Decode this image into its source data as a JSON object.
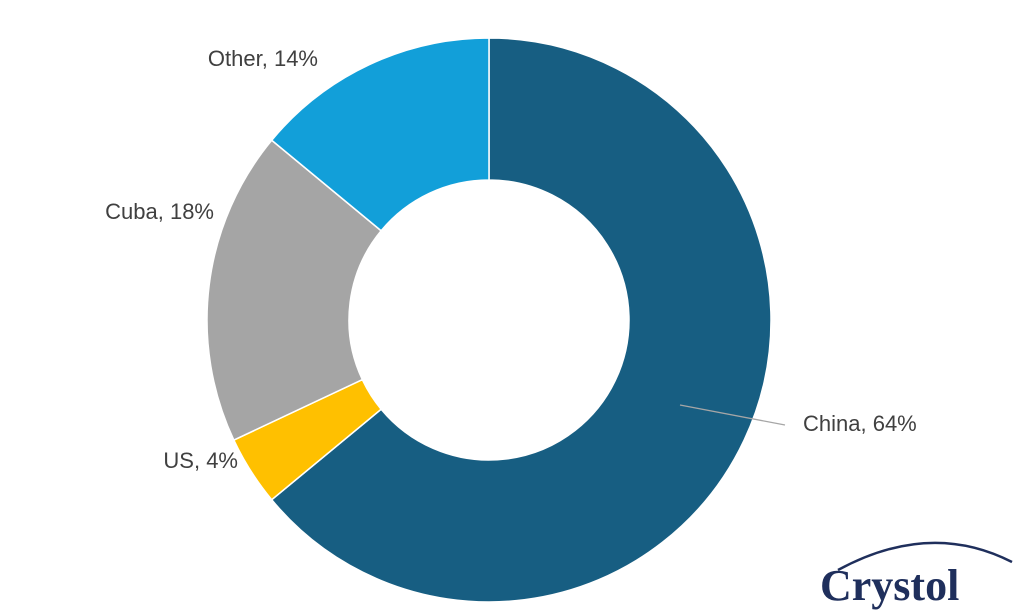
{
  "chart_data": {
    "type": "donut",
    "categories": [
      "China",
      "US",
      "Cuba",
      "Other"
    ],
    "values": [
      64,
      4,
      18,
      14
    ],
    "value_labels": [
      "China, 64%",
      "US, 4%",
      "Cuba, 18%",
      "Other, 14%"
    ],
    "colors": [
      "#175e82",
      "#ffc000",
      "#a5a5a5",
      "#129fd9"
    ]
  },
  "logo": "Crystol"
}
